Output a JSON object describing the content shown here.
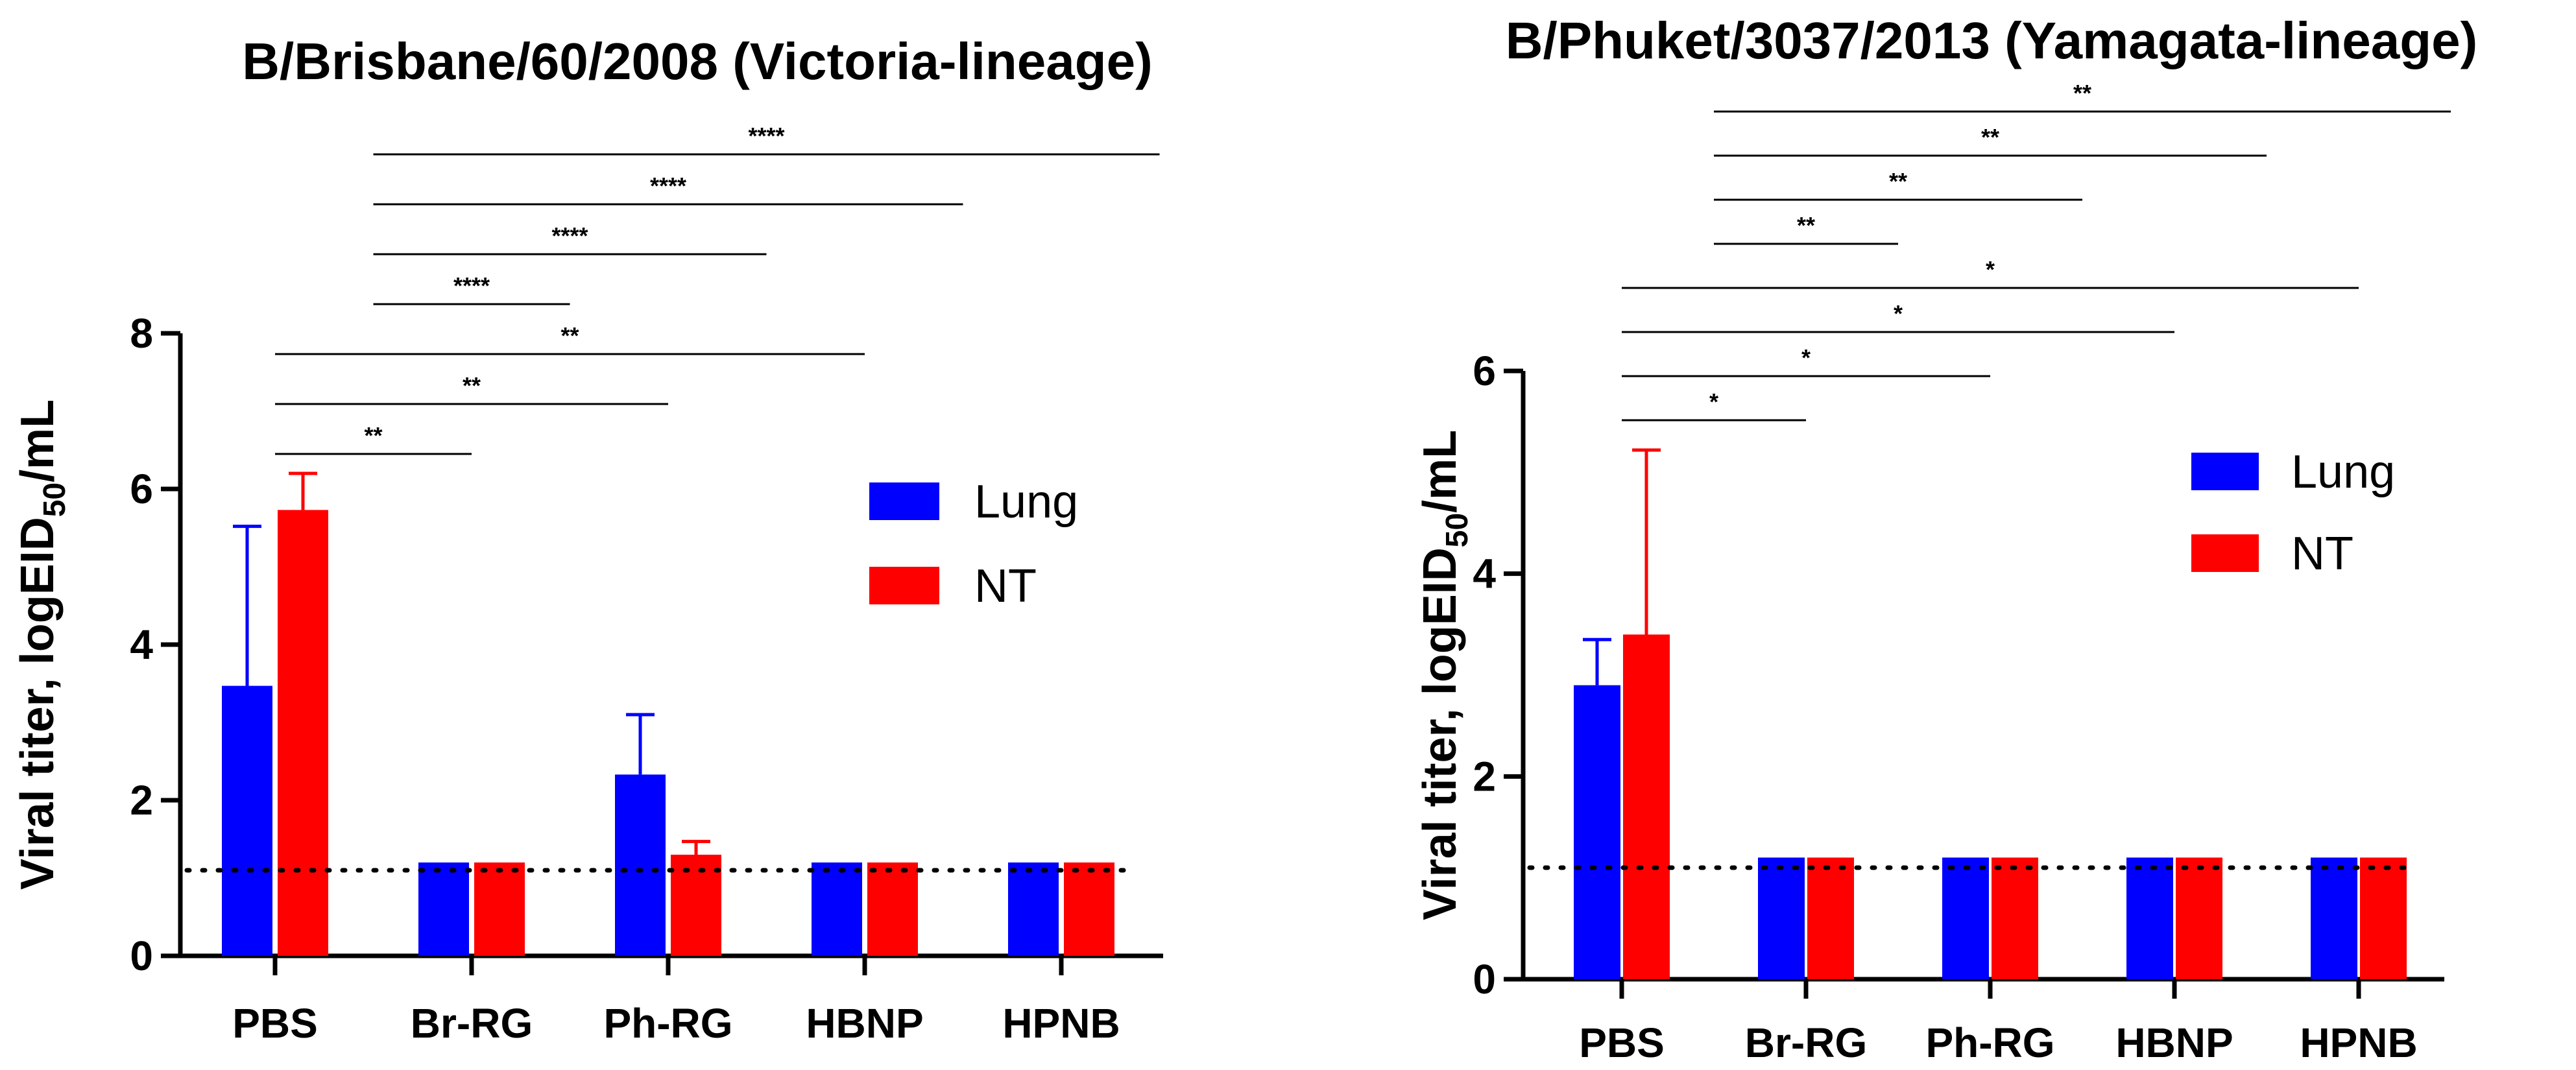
{
  "chart_data": [
    {
      "type": "bar",
      "title": "B/Brisbane/60/2008 (Victoria-lineage)",
      "ylabel_main": "Viral titer, logEID",
      "ylabel_sub": "50",
      "ylabel_tail": "/mL",
      "categories": [
        "PBS",
        "Br-RG",
        "Ph-RG",
        "HBNP",
        "HPNB"
      ],
      "ylim": [
        0,
        8
      ],
      "yticks": [
        0,
        2,
        4,
        6,
        8
      ],
      "detection_limit": 1.1,
      "legend": "right",
      "series": [
        {
          "name": "Lung",
          "color": "#0000ff",
          "values": [
            3.47,
            1.2,
            2.33,
            1.2,
            1.2
          ],
          "errors": [
            2.05,
            0,
            0.77,
            0,
            0
          ]
        },
        {
          "name": "NT",
          "color": "#ff0000",
          "values": [
            5.73,
            1.2,
            1.3,
            1.2,
            1.2
          ],
          "errors": [
            0.47,
            0,
            0.17,
            0,
            0
          ]
        }
      ],
      "comparisons": [
        {
          "from": 0,
          "to": 1,
          "label": "**"
        },
        {
          "from": 0,
          "to": 2,
          "label": "**"
        },
        {
          "from": 0,
          "to": 3,
          "label": "**"
        },
        {
          "from": 0.5,
          "to": 1.5,
          "label": "****"
        },
        {
          "from": 0.5,
          "to": 2.5,
          "label": "****"
        },
        {
          "from": 0.5,
          "to": 3.5,
          "label": "****"
        },
        {
          "from": 0.5,
          "to": 4.5,
          "label": "****"
        }
      ]
    },
    {
      "type": "bar",
      "title": "B/Phuket/3037/2013 (Yamagata-lineage)",
      "ylabel_main": "Viral titer, logEID",
      "ylabel_sub": "50",
      "ylabel_tail": "/mL",
      "categories": [
        "PBS",
        "Br-RG",
        "Ph-RG",
        "HBNP",
        "HPNB"
      ],
      "ylim": [
        0,
        6
      ],
      "yticks": [
        0,
        2,
        4,
        6
      ],
      "detection_limit": 1.1,
      "legend": "right",
      "series": [
        {
          "name": "Lung",
          "color": "#0000ff",
          "values": [
            2.9,
            1.2,
            1.2,
            1.2,
            1.2
          ],
          "errors": [
            0.45,
            0,
            0,
            0,
            0
          ]
        },
        {
          "name": "NT",
          "color": "#ff0000",
          "values": [
            3.4,
            1.2,
            1.2,
            1.2,
            1.2
          ],
          "errors": [
            1.82,
            0,
            0,
            0,
            0
          ]
        }
      ],
      "comparisons": [
        {
          "from": 0,
          "to": 1,
          "label": "*"
        },
        {
          "from": 0,
          "to": 2,
          "label": "*"
        },
        {
          "from": 0,
          "to": 3,
          "label": "*"
        },
        {
          "from": 0,
          "to": 4,
          "label": "*"
        },
        {
          "from": 0.5,
          "to": 1.5,
          "label": "**"
        },
        {
          "from": 0.5,
          "to": 2.5,
          "label": "**"
        },
        {
          "from": 0.5,
          "to": 3.5,
          "label": "**"
        },
        {
          "from": 0.5,
          "to": 4.5,
          "label": "**"
        }
      ]
    }
  ]
}
